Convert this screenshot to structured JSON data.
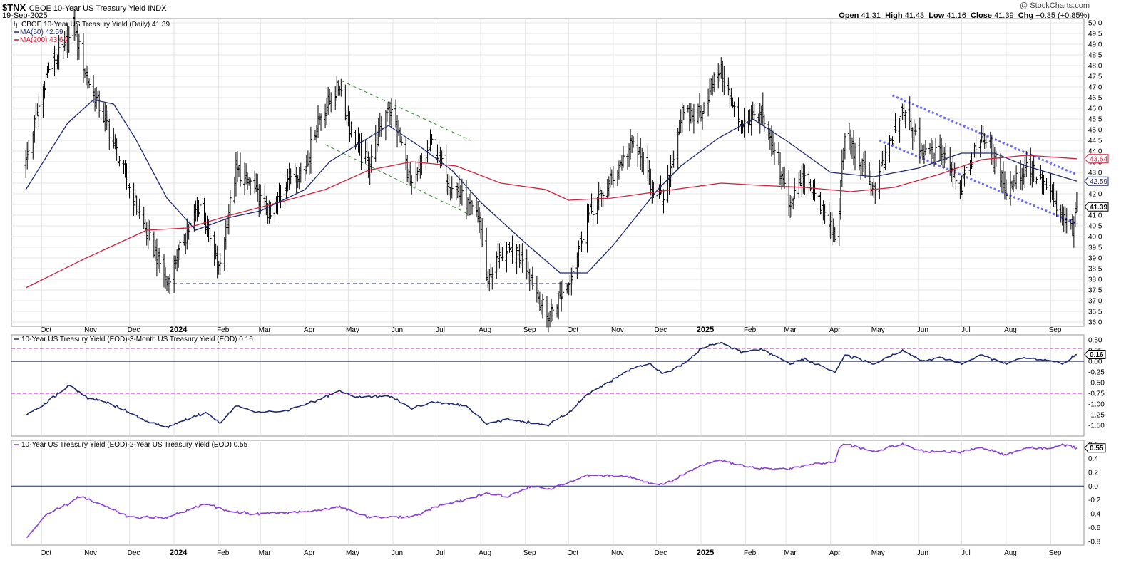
{
  "header": {
    "symbol": "$TNX",
    "description": "CBOE 10-Year US Treasury Yield INDX",
    "date": "19-Sep-2025",
    "credit": "@ StockCharts.com",
    "ohlc": {
      "open_label": "Open",
      "open": "41.31",
      "high_label": "High",
      "high": "41.43",
      "low_label": "Low",
      "low": "41.16",
      "close_label": "Close",
      "close": "41.39",
      "chg_label": "Chg",
      "chg": "+0.35 (+0.85%)"
    }
  },
  "colors": {
    "price_bars": "#000000",
    "ma50": "#1f2a6e",
    "ma200": "#d0213f",
    "spread_3m": "#1f2a6e",
    "spread_2y": "#8a3fd6",
    "channel_green": "#2e8b2e",
    "channel_blue": "#6a6cf0",
    "support_line": "#1f2a6e",
    "ref_line_magenta": "#d63fd6"
  },
  "chart_data": [
    {
      "type": "ohlc",
      "title": "CBOE 10-Year US Treasury Yield (Daily) 41.39",
      "legend": [
        {
          "name": "MA(50) 42.59",
          "color": "#1f2a6e"
        },
        {
          "name": "MA(200) 43.64",
          "color": "#d0213f"
        }
      ],
      "x_labels": [
        "Oct",
        "Nov",
        "Dec",
        "2024",
        "Feb",
        "Mar",
        "Apr",
        "May",
        "Jun",
        "Jul",
        "Aug",
        "Sep",
        "Oct",
        "Nov",
        "Dec",
        "2025",
        "Feb",
        "Mar",
        "Apr",
        "May",
        "Jun",
        "Jul",
        "Aug",
        "Sep"
      ],
      "ylim": [
        35.8,
        50.2
      ],
      "yticks": [
        36.0,
        36.5,
        37.0,
        37.5,
        38.0,
        38.5,
        39.0,
        39.5,
        40.0,
        40.5,
        41.0,
        41.5,
        42.0,
        42.5,
        43.0,
        43.5,
        44.0,
        44.5,
        45.0,
        45.5,
        46.0,
        46.5,
        47.0,
        47.5,
        48.0,
        48.5,
        49.0,
        49.5,
        50.0
      ],
      "value_tags": [
        {
          "label": "43.64",
          "value": 43.64,
          "color": "#d0213f"
        },
        {
          "label": "42.59",
          "value": 42.59,
          "color": "#1f2a6e"
        },
        {
          "label": "41.39",
          "value": 41.39,
          "color": "#000000"
        }
      ],
      "close_path": [
        [
          "2023-09-20",
          43.5
        ],
        [
          "2023-10-05",
          47.8
        ],
        [
          "2023-10-19",
          49.0
        ],
        [
          "2023-10-23",
          49.9
        ],
        [
          "2023-11-01",
          47.5
        ],
        [
          "2023-11-15",
          45.3
        ],
        [
          "2023-12-01",
          42.3
        ],
        [
          "2023-12-13",
          40.2
        ],
        [
          "2023-12-27",
          37.9
        ],
        [
          "2024-01-10",
          40.2
        ],
        [
          "2024-01-19",
          41.5
        ],
        [
          "2024-02-01",
          38.4
        ],
        [
          "2024-02-13",
          43.1
        ],
        [
          "2024-02-23",
          42.5
        ],
        [
          "2024-03-08",
          40.9
        ],
        [
          "2024-03-20",
          42.8
        ],
        [
          "2024-04-01",
          43.2
        ],
        [
          "2024-04-10",
          45.5
        ],
        [
          "2024-04-25",
          47.1
        ],
        [
          "2024-05-03",
          44.8
        ],
        [
          "2024-05-15",
          43.4
        ],
        [
          "2024-05-29",
          46.2
        ],
        [
          "2024-06-07",
          44.3
        ],
        [
          "2024-06-14",
          42.2
        ],
        [
          "2024-06-28",
          44.4
        ],
        [
          "2024-07-10",
          42.6
        ],
        [
          "2024-07-31",
          40.8
        ],
        [
          "2024-08-05",
          37.9
        ],
        [
          "2024-08-15",
          39.2
        ],
        [
          "2024-08-30",
          39.1
        ],
        [
          "2024-09-16",
          36.2
        ],
        [
          "2024-10-01",
          37.8
        ],
        [
          "2024-10-14",
          40.9
        ],
        [
          "2024-10-31",
          42.7
        ],
        [
          "2024-11-15",
          44.4
        ],
        [
          "2024-11-26",
          42.6
        ],
        [
          "2024-12-06",
          41.5
        ],
        [
          "2024-12-18",
          45.6
        ],
        [
          "2024-12-31",
          45.7
        ],
        [
          "2025-01-14",
          47.9
        ],
        [
          "2025-01-27",
          45.3
        ],
        [
          "2025-02-11",
          45.8
        ],
        [
          "2025-03-04",
          41.5
        ],
        [
          "2025-03-14",
          43.0
        ],
        [
          "2025-04-04",
          40.0
        ],
        [
          "2025-04-07",
          41.5
        ],
        [
          "2025-04-11",
          44.8
        ],
        [
          "2025-05-01",
          42.2
        ],
        [
          "2025-05-21",
          45.9
        ],
        [
          "2025-06-05",
          43.8
        ],
        [
          "2025-06-16",
          44.2
        ],
        [
          "2025-07-01",
          42.4
        ],
        [
          "2025-07-15",
          44.8
        ],
        [
          "2025-08-01",
          42.2
        ],
        [
          "2025-08-15",
          43.3
        ],
        [
          "2025-08-29",
          42.3
        ],
        [
          "2025-09-09",
          40.8
        ],
        [
          "2025-09-17",
          40.3
        ],
        [
          "2025-09-19",
          41.39
        ]
      ],
      "ma50_path": [
        [
          "2023-09-20",
          42.2
        ],
        [
          "2023-10-19",
          45.3
        ],
        [
          "2023-11-06",
          46.4
        ],
        [
          "2023-11-20",
          46.2
        ],
        [
          "2023-12-05",
          44.6
        ],
        [
          "2023-12-27",
          41.8
        ],
        [
          "2024-01-16",
          40.3
        ],
        [
          "2024-02-09",
          40.9
        ],
        [
          "2024-03-01",
          41.2
        ],
        [
          "2024-04-01",
          42.2
        ],
        [
          "2024-04-18",
          43.5
        ],
        [
          "2024-05-29",
          45.2
        ],
        [
          "2024-06-20",
          44.2
        ],
        [
          "2024-07-12",
          43.1
        ],
        [
          "2024-08-01",
          41.6
        ],
        [
          "2024-09-01",
          39.7
        ],
        [
          "2024-09-25",
          38.3
        ],
        [
          "2024-10-14",
          38.3
        ],
        [
          "2024-11-01",
          39.6
        ],
        [
          "2024-12-02",
          42.2
        ],
        [
          "2024-12-18",
          43.3
        ],
        [
          "2025-01-13",
          44.6
        ],
        [
          "2025-02-06",
          45.5
        ],
        [
          "2025-03-01",
          44.5
        ],
        [
          "2025-04-01",
          43.0
        ],
        [
          "2025-05-01",
          42.8
        ],
        [
          "2025-06-01",
          43.2
        ],
        [
          "2025-07-01",
          43.9
        ],
        [
          "2025-07-24",
          43.9
        ],
        [
          "2025-08-15",
          43.3
        ],
        [
          "2025-09-19",
          42.59
        ]
      ],
      "ma200_path": [
        [
          "2023-09-20",
          37.6
        ],
        [
          "2023-11-01",
          39.0
        ],
        [
          "2023-12-13",
          40.3
        ],
        [
          "2024-01-10",
          40.4
        ],
        [
          "2024-02-09",
          41.0
        ],
        [
          "2024-03-14",
          41.6
        ],
        [
          "2024-04-15",
          42.2
        ],
        [
          "2024-05-15",
          43.1
        ],
        [
          "2024-06-14",
          43.5
        ],
        [
          "2024-07-15",
          43.3
        ],
        [
          "2024-08-15",
          42.5
        ],
        [
          "2024-09-15",
          42.2
        ],
        [
          "2024-10-01",
          41.7
        ],
        [
          "2024-10-31",
          41.8
        ],
        [
          "2024-12-02",
          42.1
        ],
        [
          "2025-01-15",
          42.5
        ],
        [
          "2025-02-10",
          42.4
        ],
        [
          "2025-03-14",
          42.3
        ],
        [
          "2025-04-15",
          42.1
        ],
        [
          "2025-05-15",
          42.3
        ],
        [
          "2025-06-15",
          42.9
        ],
        [
          "2025-07-15",
          43.6
        ],
        [
          "2025-08-15",
          43.8
        ],
        [
          "2025-09-19",
          43.64
        ]
      ],
      "annotations": [
        {
          "kind": "channel",
          "color": "#2e8b2e",
          "style": "dashed",
          "points": [
            [
              "2024-04-26",
              47.3
            ],
            [
              "2024-07-25",
              44.5
            ]
          ]
        },
        {
          "kind": "channel",
          "color": "#2e8b2e",
          "style": "dashed",
          "points": [
            [
              "2024-04-15",
              44.3
            ],
            [
              "2024-07-25",
              41.0
            ]
          ]
        },
        {
          "kind": "channel",
          "color": "#6a6cf0",
          "style": "dotted",
          "points": [
            [
              "2025-05-14",
              46.6
            ],
            [
              "2025-09-19",
              42.9
            ]
          ]
        },
        {
          "kind": "channel",
          "color": "#6a6cf0",
          "style": "dotted",
          "points": [
            [
              "2025-05-05",
              44.5
            ],
            [
              "2025-09-19",
              40.6
            ]
          ]
        },
        {
          "kind": "support",
          "color": "#1f2a6e",
          "style": "dashed",
          "points": [
            [
              "2023-12-27",
              37.8
            ],
            [
              "2024-10-01",
              37.8
            ]
          ]
        }
      ]
    },
    {
      "type": "line",
      "title": "10-Year US Treasury Yield (EOD)-3-Month US Treasury Yield (EOD) 0.16",
      "ylim": [
        -1.75,
        0.62
      ],
      "yticks": [
        0.5,
        0.25,
        0.0,
        -0.25,
        -0.5,
        -0.75,
        -1.0,
        -1.25,
        -1.5
      ],
      "ytick_labels": [
        "0.50",
        "0.25",
        "0.00",
        "-0.25",
        "-0.50",
        "-0.75",
        "-1.00",
        "-1.25",
        "-1.50"
      ],
      "ref_lines": [
        0.3,
        0.0,
        -0.75
      ],
      "last_value": "0.16",
      "path": [
        [
          "2023-09-20",
          -1.25
        ],
        [
          "2023-10-05",
          -0.95
        ],
        [
          "2023-10-20",
          -0.55
        ],
        [
          "2023-11-01",
          -0.85
        ],
        [
          "2023-11-15",
          -0.95
        ],
        [
          "2023-12-01",
          -1.2
        ],
        [
          "2023-12-13",
          -1.4
        ],
        [
          "2023-12-27",
          -1.55
        ],
        [
          "2024-01-10",
          -1.35
        ],
        [
          "2024-01-23",
          -1.2
        ],
        [
          "2024-02-02",
          -1.45
        ],
        [
          "2024-02-13",
          -1.05
        ],
        [
          "2024-03-01",
          -1.2
        ],
        [
          "2024-03-20",
          -1.15
        ],
        [
          "2024-04-10",
          -0.9
        ],
        [
          "2024-04-25",
          -0.7
        ],
        [
          "2024-05-07",
          -0.85
        ],
        [
          "2024-05-29",
          -0.8
        ],
        [
          "2024-06-14",
          -1.1
        ],
        [
          "2024-07-01",
          -0.95
        ],
        [
          "2024-07-22",
          -1.05
        ],
        [
          "2024-08-05",
          -1.45
        ],
        [
          "2024-08-20",
          -1.35
        ],
        [
          "2024-09-16",
          -1.5
        ],
        [
          "2024-10-01",
          -1.2
        ],
        [
          "2024-10-15",
          -0.75
        ],
        [
          "2024-10-31",
          -0.45
        ],
        [
          "2024-11-15",
          -0.15
        ],
        [
          "2024-11-26",
          -0.05
        ],
        [
          "2024-12-06",
          -0.3
        ],
        [
          "2024-12-18",
          -0.1
        ],
        [
          "2025-01-01",
          0.3
        ],
        [
          "2025-01-14",
          0.45
        ],
        [
          "2025-01-30",
          0.2
        ],
        [
          "2025-02-11",
          0.3
        ],
        [
          "2025-03-04",
          -0.05
        ],
        [
          "2025-03-14",
          0.05
        ],
        [
          "2025-04-04",
          -0.25
        ],
        [
          "2025-04-11",
          0.15
        ],
        [
          "2025-05-01",
          -0.05
        ],
        [
          "2025-05-21",
          0.25
        ],
        [
          "2025-06-05",
          0.0
        ],
        [
          "2025-06-16",
          0.1
        ],
        [
          "2025-07-01",
          -0.05
        ],
        [
          "2025-07-15",
          0.15
        ],
        [
          "2025-08-01",
          -0.05
        ],
        [
          "2025-08-15",
          0.1
        ],
        [
          "2025-09-09",
          -0.05
        ],
        [
          "2025-09-19",
          0.16
        ]
      ]
    },
    {
      "type": "line",
      "title": "10-Year US Treasury Yield (EOD)-2-Year US Treasury Yield (EOD) 0.55",
      "ylim": [
        -0.85,
        0.66
      ],
      "yticks": [
        0.6,
        0.4,
        0.2,
        0.0,
        -0.2,
        -0.4,
        -0.6,
        -0.8
      ],
      "ytick_labels": [
        "0.6",
        "0.4",
        "0.2",
        "0.0",
        "-0.2",
        "-0.4",
        "-0.6",
        "-0.8"
      ],
      "ref_lines": [
        0.0
      ],
      "last_value": "0.55",
      "path": [
        [
          "2023-09-20",
          -0.75
        ],
        [
          "2023-10-05",
          -0.4
        ],
        [
          "2023-10-20",
          -0.25
        ],
        [
          "2023-10-27",
          -0.15
        ],
        [
          "2023-11-10",
          -0.25
        ],
        [
          "2023-12-01",
          -0.45
        ],
        [
          "2023-12-27",
          -0.45
        ],
        [
          "2024-01-10",
          -0.35
        ],
        [
          "2024-01-23",
          -0.25
        ],
        [
          "2024-02-05",
          -0.35
        ],
        [
          "2024-02-23",
          -0.4
        ],
        [
          "2024-03-20",
          -0.38
        ],
        [
          "2024-04-10",
          -0.35
        ],
        [
          "2024-04-25",
          -0.3
        ],
        [
          "2024-05-15",
          -0.45
        ],
        [
          "2024-06-14",
          -0.45
        ],
        [
          "2024-07-01",
          -0.3
        ],
        [
          "2024-07-22",
          -0.2
        ],
        [
          "2024-08-05",
          -0.1
        ],
        [
          "2024-08-20",
          -0.15
        ],
        [
          "2024-09-05",
          0.0
        ],
        [
          "2024-09-16",
          -0.05
        ],
        [
          "2024-10-01",
          0.05
        ],
        [
          "2024-10-15",
          0.15
        ],
        [
          "2024-10-31",
          0.15
        ],
        [
          "2024-11-15",
          0.12
        ],
        [
          "2024-11-26",
          0.05
        ],
        [
          "2024-12-06",
          0.02
        ],
        [
          "2024-12-18",
          0.15
        ],
        [
          "2025-01-01",
          0.3
        ],
        [
          "2025-01-14",
          0.38
        ],
        [
          "2025-01-30",
          0.3
        ],
        [
          "2025-02-11",
          0.25
        ],
        [
          "2025-03-04",
          0.25
        ],
        [
          "2025-03-14",
          0.3
        ],
        [
          "2025-04-04",
          0.35
        ],
        [
          "2025-04-07",
          0.55
        ],
        [
          "2025-04-11",
          0.6
        ],
        [
          "2025-05-01",
          0.5
        ],
        [
          "2025-05-21",
          0.6
        ],
        [
          "2025-06-05",
          0.5
        ],
        [
          "2025-06-16",
          0.5
        ],
        [
          "2025-07-01",
          0.5
        ],
        [
          "2025-07-15",
          0.55
        ],
        [
          "2025-08-01",
          0.45
        ],
        [
          "2025-08-15",
          0.55
        ],
        [
          "2025-09-01",
          0.55
        ],
        [
          "2025-09-09",
          0.6
        ],
        [
          "2025-09-19",
          0.55
        ]
      ]
    }
  ]
}
